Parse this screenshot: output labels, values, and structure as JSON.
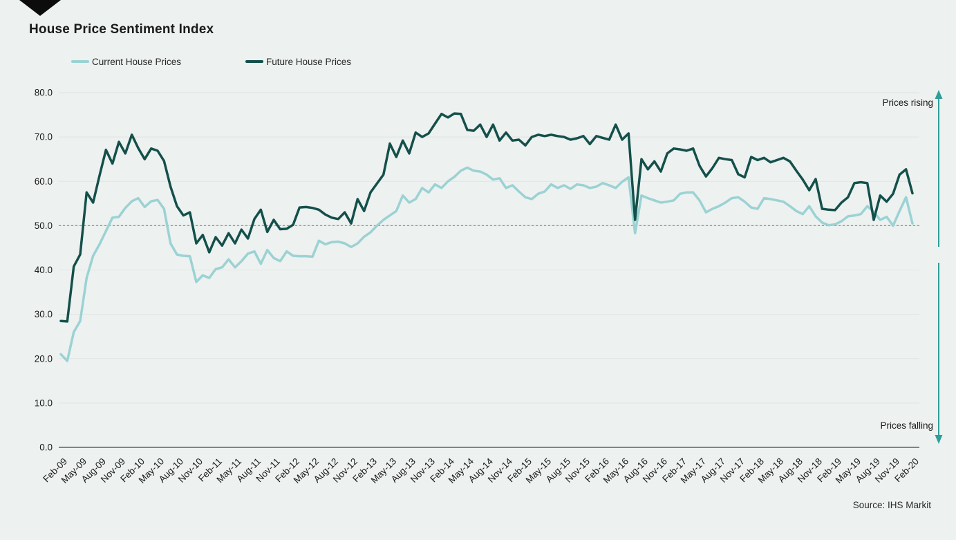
{
  "title": "House Price Sentiment Index",
  "legend": {
    "current": {
      "label": "Current House Prices",
      "color": "#9bd2d4"
    },
    "future": {
      "label": "Future House Prices",
      "color": "#14504b"
    }
  },
  "annotations": {
    "rising": "Prices rising",
    "falling": "Prices falling",
    "arrow_color": "#2f9e98"
  },
  "source": "Source: IHS Markit",
  "colors": {
    "background": "#edf1ef",
    "gridline": "#e0e4e2",
    "axis_line": "#7f8583",
    "text": "#1a1a1a",
    "reference_line": "#e26b63"
  },
  "chart_data": {
    "type": "line",
    "title": "House Price Sentiment Index",
    "xlabel": "",
    "ylabel": "",
    "frequency": "monthly",
    "x_start": "Feb-09",
    "x_end": "Feb-20",
    "x_tick_every_months": 3,
    "x_tick_labels": [
      "Feb-09",
      "May-09",
      "Aug-09",
      "Nov-09",
      "Feb-10",
      "May-10",
      "Aug-10",
      "Nov-10",
      "Feb-11",
      "May-11",
      "Aug-11",
      "Nov-11",
      "Feb-12",
      "May-12",
      "Aug-12",
      "Nov-12",
      "Feb-13",
      "May-13",
      "Aug-13",
      "Nov-13",
      "Feb-14",
      "May-14",
      "Aug-14",
      "Nov-14",
      "Feb-15",
      "May-15",
      "Aug-15",
      "Nov-15",
      "Feb-16",
      "May-16",
      "Aug-16",
      "Nov-16",
      "Feb-17",
      "May-17",
      "Aug-17",
      "Nov-17",
      "Feb-18",
      "May-18",
      "Aug-18",
      "Nov-18",
      "Feb-19",
      "May-19",
      "Aug-19",
      "Nov-19",
      "Feb-20"
    ],
    "y_ticks": [
      0,
      10,
      20,
      30,
      40,
      50,
      60,
      70,
      80
    ],
    "y_tick_labels": [
      "0.0",
      "10.0",
      "20.0",
      "30.0",
      "40.0",
      "50.0",
      "60.0",
      "70.0",
      "80.0"
    ],
    "ylim": [
      0,
      80
    ],
    "grid": "horizontal",
    "legend_position": "top",
    "reference_line": {
      "value": 50,
      "style": "dashed",
      "color": "#e26b63"
    },
    "series": [
      {
        "name": "Current House Prices",
        "color": "#9bd2d4",
        "values": [
          21.0,
          19.5,
          26.0,
          28.5,
          38.2,
          43.2,
          45.8,
          48.8,
          51.8,
          52.0,
          54.0,
          55.5,
          56.2,
          54.2,
          55.5,
          55.8,
          53.8,
          46.0,
          43.5,
          43.2,
          43.1,
          37.3,
          38.8,
          38.2,
          40.2,
          40.6,
          42.4,
          40.6,
          42.0,
          43.7,
          44.2,
          41.4,
          44.5,
          42.7,
          42.0,
          44.2,
          43.2,
          43.1,
          43.1,
          43.0,
          46.6,
          45.8,
          46.3,
          46.4,
          46.0,
          45.2,
          46.0,
          47.5,
          48.5,
          50.0,
          51.3,
          52.3,
          53.3,
          56.8,
          55.2,
          56.0,
          58.5,
          57.5,
          59.3,
          58.5,
          60.0,
          61.0,
          62.4,
          63.1,
          62.4,
          62.2,
          61.5,
          60.4,
          60.7,
          58.5,
          59.1,
          57.7,
          56.4,
          56.0,
          57.2,
          57.7,
          59.3,
          58.5,
          59.1,
          58.3,
          59.3,
          59.1,
          58.5,
          58.8,
          59.6,
          59.1,
          58.5,
          59.9,
          60.9,
          48.3,
          56.8,
          56.2,
          55.7,
          55.2,
          55.4,
          55.7,
          57.2,
          57.5,
          57.5,
          55.7,
          53.0,
          53.8,
          54.4,
          55.2,
          56.2,
          56.4,
          55.4,
          54.1,
          53.8,
          56.2,
          56.0,
          55.7,
          55.4,
          54.4,
          53.3,
          52.6,
          54.4,
          52.1,
          50.7,
          50.1,
          50.3,
          51.0,
          52.1,
          52.3,
          52.6,
          54.4,
          53.1,
          51.3,
          52.0,
          50.0,
          53.3,
          56.4,
          50.5
        ]
      },
      {
        "name": "Future House Prices",
        "color": "#14504b",
        "values": [
          28.5,
          28.4,
          40.8,
          43.5,
          57.5,
          55.2,
          61.3,
          67.1,
          64.0,
          68.9,
          66.3,
          70.5,
          67.5,
          65.0,
          67.4,
          66.9,
          64.6,
          58.8,
          54.4,
          52.3,
          53.0,
          46.0,
          47.9,
          44.0,
          47.4,
          45.5,
          48.3,
          46.0,
          49.1,
          47.1,
          51.5,
          53.6,
          48.6,
          51.3,
          49.2,
          49.3,
          50.2,
          54.1,
          54.2,
          54.0,
          53.6,
          52.5,
          51.8,
          51.5,
          53.0,
          50.5,
          56.0,
          53.3,
          57.5,
          59.5,
          61.5,
          68.5,
          65.5,
          69.2,
          66.3,
          71.0,
          70.0,
          70.8,
          73.0,
          75.2,
          74.4,
          75.3,
          75.2,
          71.6,
          71.4,
          72.8,
          70.0,
          72.8,
          69.2,
          71.0,
          69.2,
          69.4,
          68.1,
          70.0,
          70.5,
          70.2,
          70.5,
          70.2,
          70.0,
          69.4,
          69.7,
          70.2,
          68.4,
          70.2,
          69.8,
          69.4,
          72.8,
          69.4,
          70.8,
          51.3,
          65.0,
          62.7,
          64.5,
          62.2,
          66.3,
          67.4,
          67.2,
          66.9,
          67.4,
          63.5,
          61.1,
          63.0,
          65.3,
          65.0,
          64.8,
          61.6,
          60.9,
          65.5,
          64.8,
          65.3,
          64.3,
          64.8,
          65.3,
          64.5,
          62.4,
          60.4,
          58.0,
          60.5,
          53.8,
          53.6,
          53.5,
          55.2,
          56.4,
          59.6,
          59.8,
          59.6,
          51.3,
          56.8,
          55.4,
          57.2,
          61.5,
          62.7,
          57.3
        ]
      }
    ]
  }
}
